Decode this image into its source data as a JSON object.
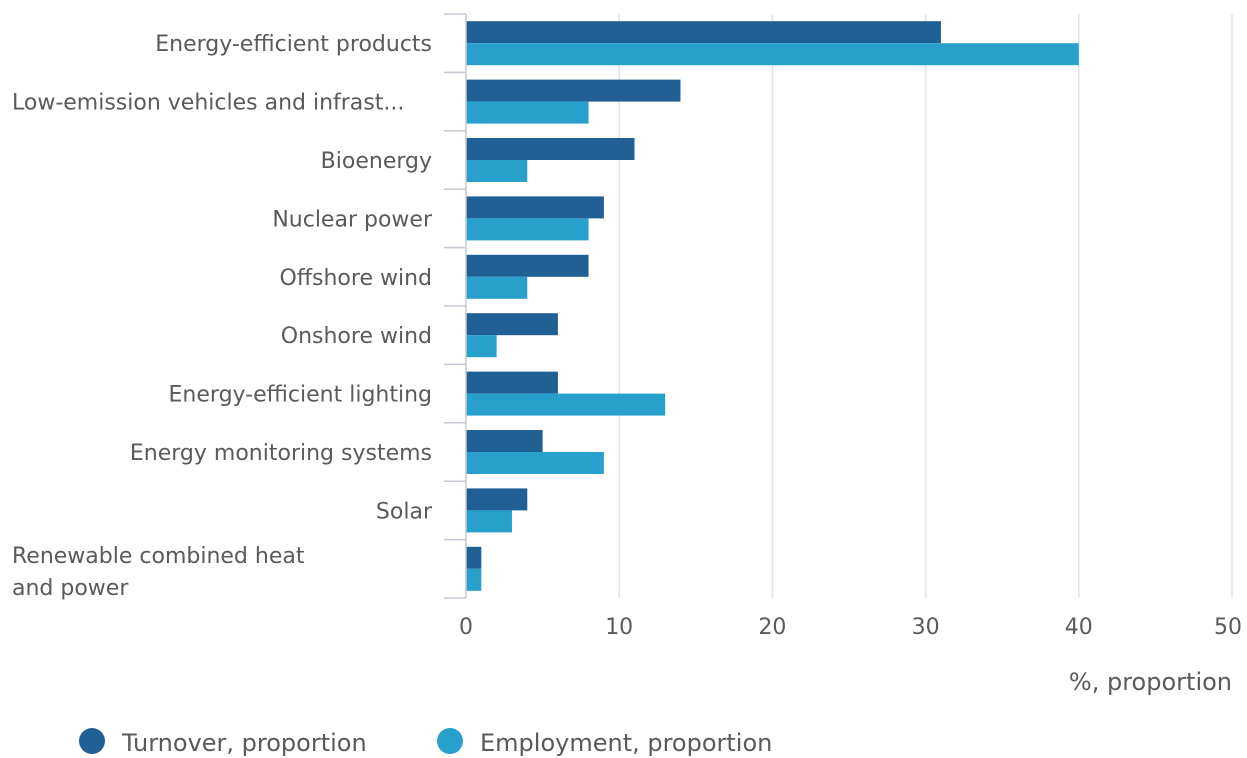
{
  "chart_data": {
    "type": "bar",
    "orientation": "horizontal",
    "categories": [
      "Energy-efficient products",
      "Low-emission vehicles and infrast...",
      "Bioenergy",
      "Nuclear power",
      "Offshore wind",
      "Onshore wind",
      "Energy-efficient lighting",
      "Energy monitoring systems",
      "Solar",
      "Renewable combined heat and power"
    ],
    "series": [
      {
        "name": "Turnover, proportion",
        "color": "#206095",
        "values": [
          31,
          14,
          11,
          9,
          8,
          6,
          6,
          5,
          4,
          1
        ]
      },
      {
        "name": "Employment, proportion",
        "color": "#27A0CC",
        "values": [
          40,
          8,
          4,
          8,
          4,
          2,
          13,
          9,
          3,
          1
        ]
      }
    ],
    "xlabel": "%, proportion",
    "xlim": [
      0,
      50
    ],
    "xticks": [
      0,
      10,
      20,
      30,
      40,
      50
    ],
    "grid": true,
    "legend_position": "bottom-left"
  }
}
